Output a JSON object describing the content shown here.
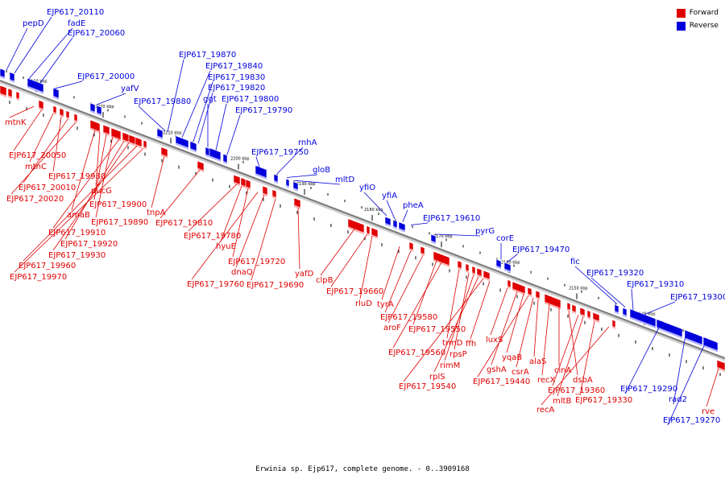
{
  "legend": {
    "forward_label": "Forward",
    "reverse_label": "Reverse",
    "forward_color": "#e00000",
    "reverse_color": "#0000dd"
  },
  "caption": "Erwinia sp. Ejp617, complete genome. - 0..3909168",
  "kbp_marks": [
    "2230 kbp",
    "2220 kbp",
    "2210 kbp",
    "2200 kbp",
    "2190 kbp",
    "2180 kbp",
    "2170 kbp",
    "2160 kbp",
    "2150 kbp",
    "2140 kbp"
  ],
  "reverse_labels": [
    "pepD",
    "EJP617_20110",
    "fadE",
    "EJP617_20060",
    "EJP617_20000",
    "yafV",
    "EJP617_19870",
    "EJP617_19840",
    "EJP617_19830",
    "EJP617_19820",
    "EJP617_19880",
    "ggt",
    "EJP617_19800",
    "EJP617_19790",
    "EJP617_19750",
    "rnhA",
    "gloB",
    "mltD",
    "yfiO",
    "yfiA",
    "pheA",
    "EJP617_19610",
    "pyrG",
    "corE",
    "EJP617_19470",
    "fic",
    "EJP617_19320",
    "EJP617_19310",
    "EJP617_19300",
    "EJP617_19290",
    "rad2",
    "EJP617_19270"
  ],
  "forward_labels": [
    "mtnK",
    "EJP617_20050",
    "mtnC",
    "EJP617_19980",
    "EJP617_20010",
    "EJP617_20020",
    "pucG",
    "EJP617_19900",
    "amaB",
    "EJP617_19890",
    "EJP617_19910",
    "EJP617_19920",
    "EJP617_19930",
    "EJP617_19960",
    "EJP617_19970",
    "tnpA",
    "EJP617_19810",
    "EJP617_19780",
    "hyuE",
    "EJP617_19720",
    "dnaQ",
    "EJP617_19690",
    "EJP617_19760",
    "yafD",
    "clpB",
    "EJP617_19660",
    "rluD",
    "tyrA",
    "EJP617_19580",
    "aroF",
    "EJP617_19550",
    "EJP617_19560",
    "trmD",
    "rpsP",
    "rimM",
    "rplS",
    "EJP617_19540",
    "ffh",
    "luxS",
    "gshA",
    "yqaB",
    "csrA",
    "alaS",
    "EJP617_19440",
    "recX",
    "cinA",
    "dsbA",
    "EJP617_19360",
    "mltB",
    "EJP617_19330",
    "recA",
    "rve"
  ]
}
